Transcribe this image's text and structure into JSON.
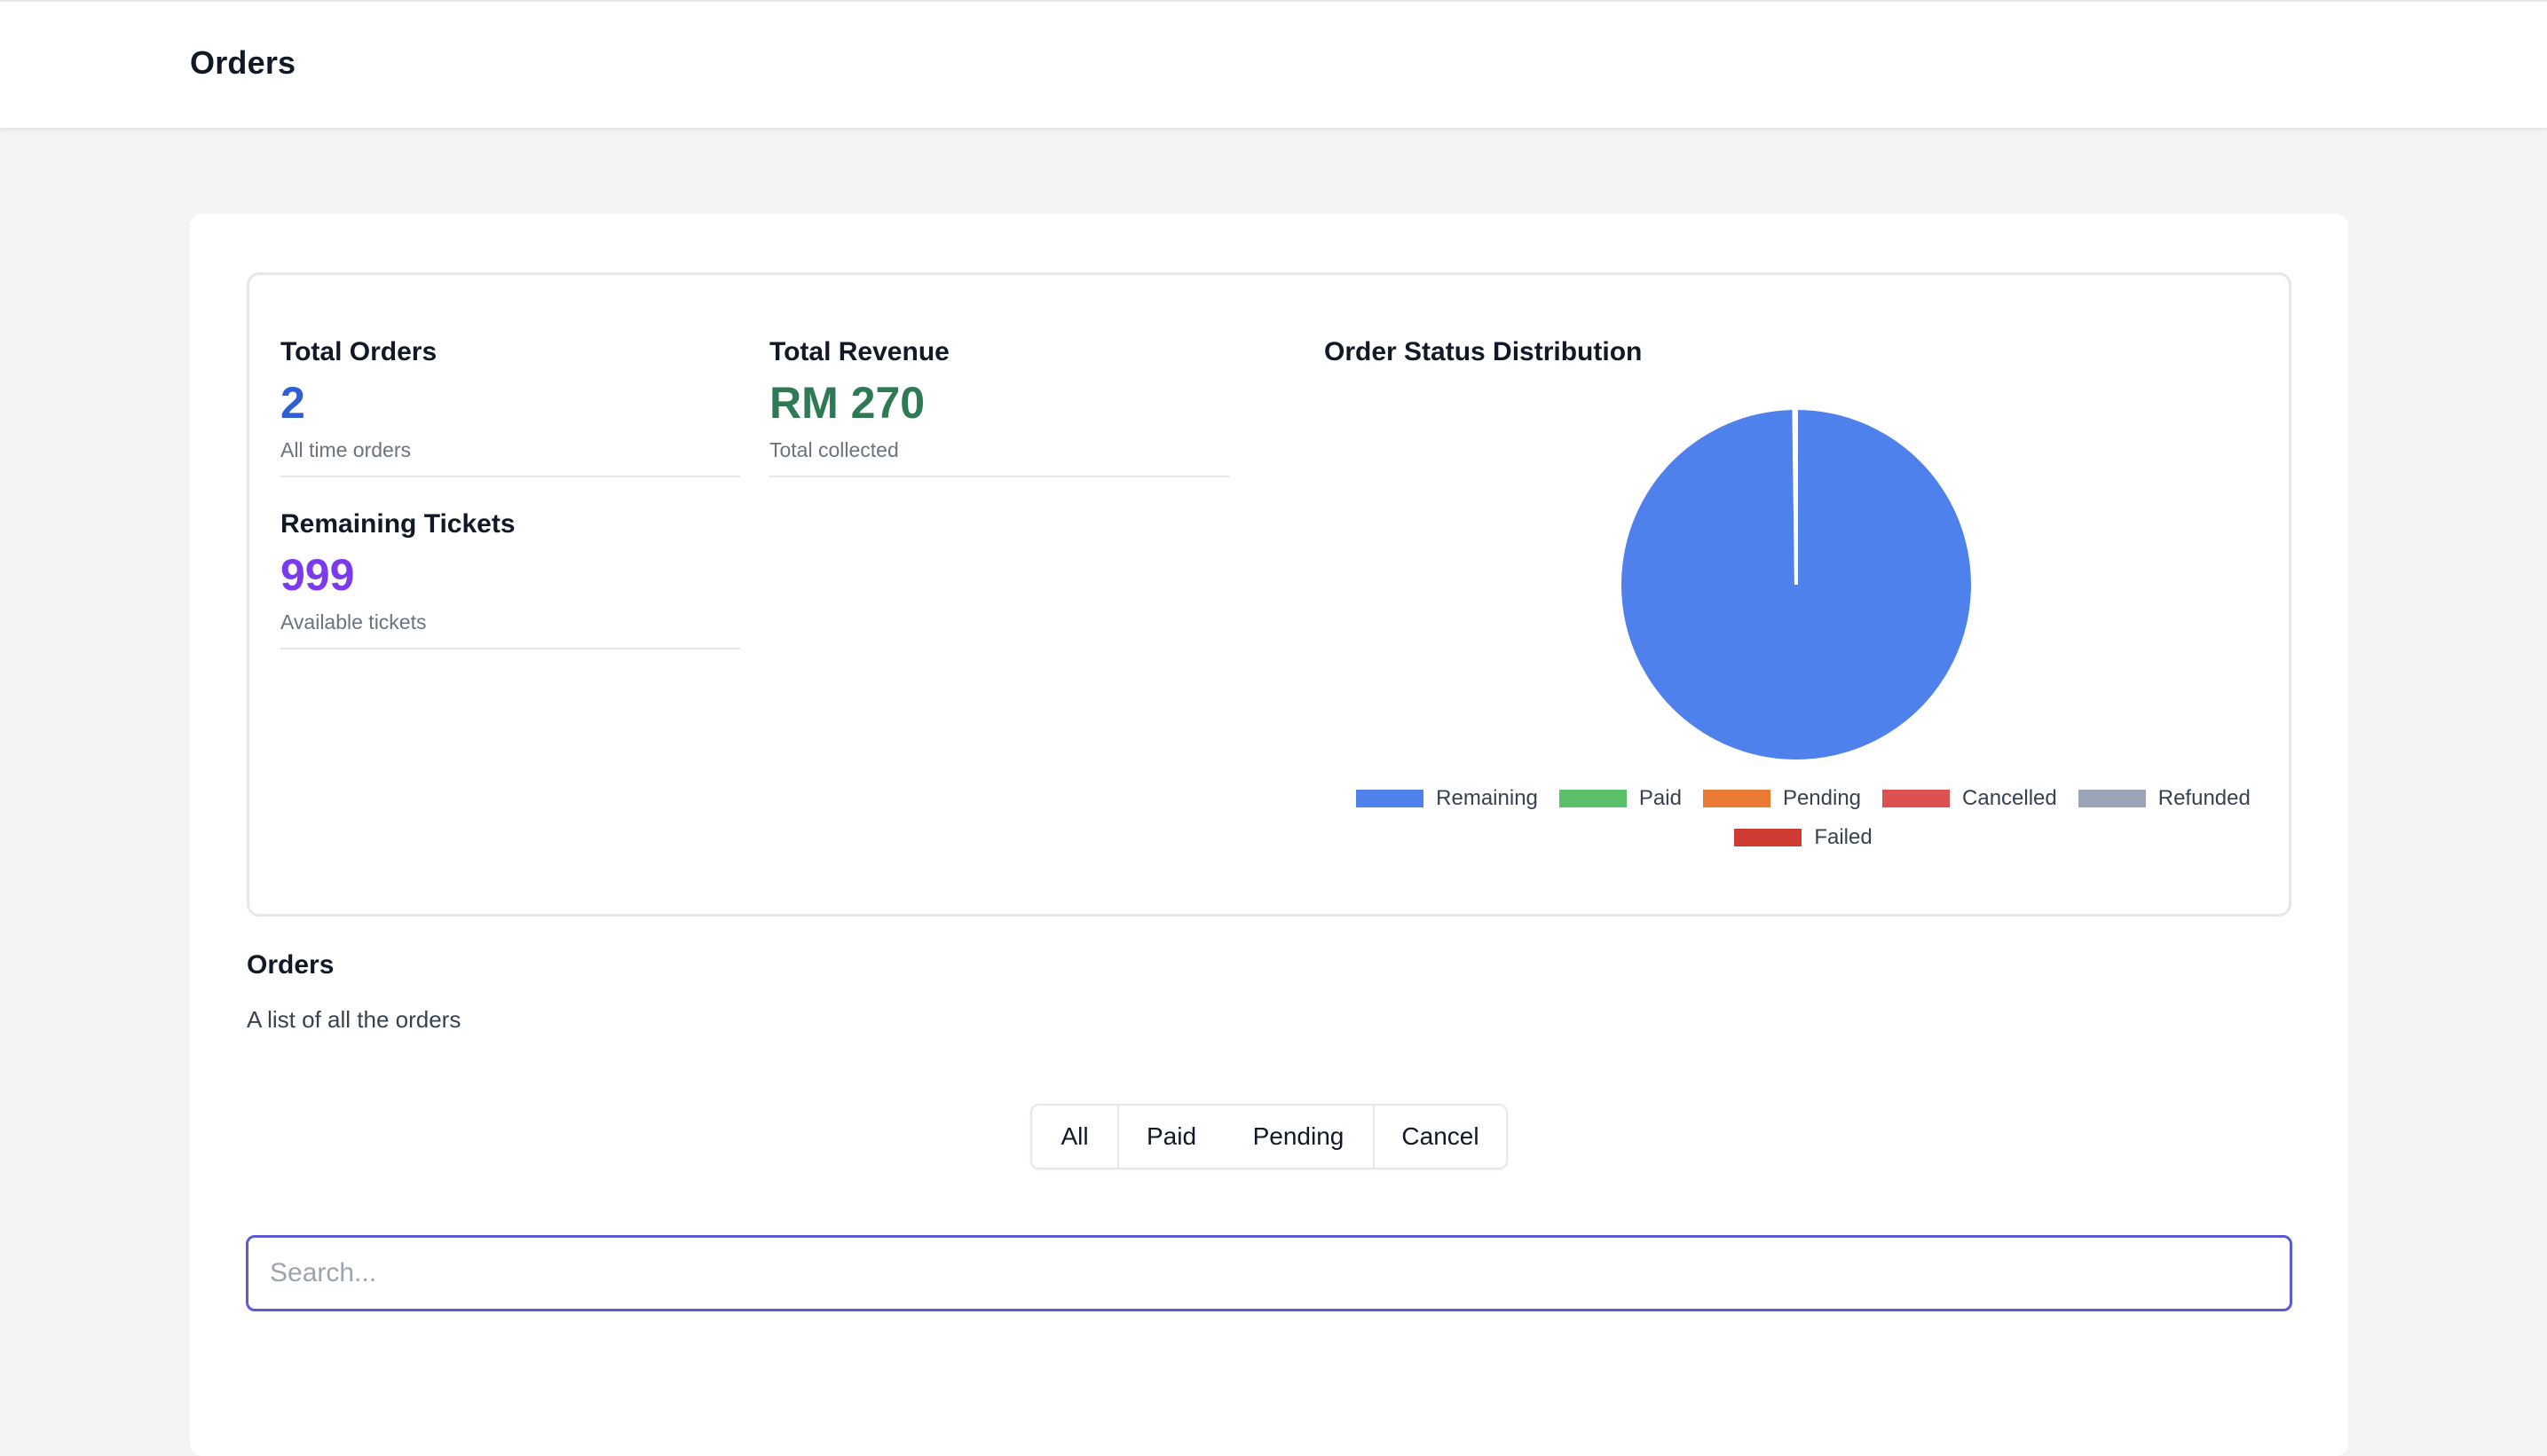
{
  "header": {
    "title": "Orders"
  },
  "stats": {
    "total_orders": {
      "label": "Total Orders",
      "value": "2",
      "sub": "All time orders",
      "color": "#2f5fd0"
    },
    "total_revenue": {
      "label": "Total Revenue",
      "value": "RM 270",
      "sub": "Total collected",
      "color": "#2f7a55"
    },
    "remaining_tickets": {
      "label": "Remaining Tickets",
      "value": "999",
      "sub": "Available tickets",
      "color": "#7c3aed"
    }
  },
  "chart_title": "Order Status Distribution",
  "chart_data": {
    "type": "pie",
    "labels": [
      "Remaining",
      "Paid",
      "Pending",
      "Cancelled",
      "Refunded",
      "Failed"
    ],
    "values": [
      999,
      2,
      0,
      0,
      0,
      0
    ],
    "colors": [
      "#4f81ed",
      "#5cbf6a",
      "#ea7b34",
      "#dc5252",
      "#9ba5b8",
      "#cc3c32"
    ],
    "legend_position": "bottom"
  },
  "orders_section": {
    "heading": "Orders",
    "description": "A list of all the orders"
  },
  "filters": [
    "All",
    "Paid",
    "Pending",
    "Cancel"
  ],
  "search": {
    "placeholder": "Search...",
    "value": ""
  }
}
